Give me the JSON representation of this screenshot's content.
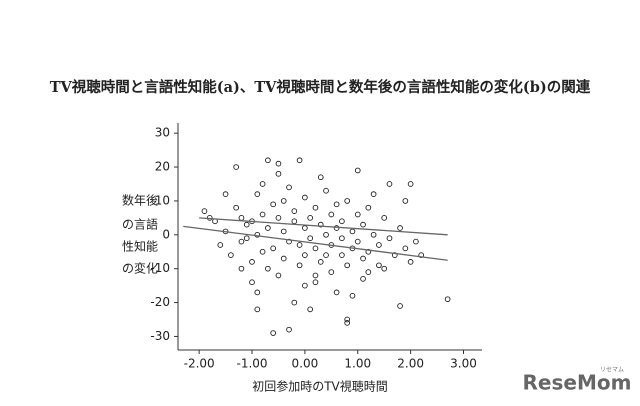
{
  "chart_data": {
    "type": "scatter",
    "title": "TV視聴時間と言語性知能(a)、TV視聴時間と数年後の言語性知能の変化(b)の関連",
    "y_label": [
      "数年後",
      "の言語",
      "性知能",
      "の変化"
    ],
    "x_label": "初回参加時のTV視聴時間",
    "watermark": "ReseMom",
    "watermark_sub": "リセマム",
    "xlim": [
      -2.4,
      3.35
    ],
    "ylim": [
      -34,
      33
    ],
    "xticks": [
      {
        "value": -2,
        "label": "-2.00"
      },
      {
        "value": -1,
        "label": "-1.00"
      },
      {
        "value": 0,
        "label": "0.00"
      },
      {
        "value": 1,
        "label": "1.00"
      },
      {
        "value": 2,
        "label": "2.00"
      },
      {
        "value": 3,
        "label": "3.00"
      }
    ],
    "yticks": [
      30,
      20,
      10,
      0,
      -10,
      -20,
      -30
    ],
    "color": "#222222",
    "line_color": "#666666",
    "x": [
      -1.9,
      -1.8,
      -1.7,
      -1.6,
      -1.5,
      -1.4,
      -1.3,
      -1.3,
      -1.2,
      -1.2,
      -1.1,
      -1.1,
      -1.0,
      -1.0,
      -1.0,
      -0.9,
      -0.9,
      -0.9,
      -0.8,
      -0.8,
      -0.8,
      -0.7,
      -0.7,
      -0.7,
      -0.6,
      -0.6,
      -0.6,
      -0.5,
      -0.5,
      -0.5,
      -0.4,
      -0.4,
      -0.4,
      -0.3,
      -0.3,
      -0.3,
      -0.2,
      -0.2,
      -0.2,
      -0.1,
      -0.1,
      -0.1,
      0,
      0,
      0,
      0,
      0.1,
      0.1,
      0.1,
      0.2,
      0.2,
      0.2,
      0.3,
      0.3,
      0.3,
      0.4,
      0.4,
      0.4,
      0.5,
      0.5,
      0.5,
      0.6,
      0.6,
      0.6,
      0.7,
      0.7,
      0.7,
      0.8,
      0.8,
      0.8,
      0.9,
      0.9,
      0.9,
      1.0,
      1.0,
      1.0,
      1.1,
      1.1,
      1.1,
      1.2,
      1.2,
      1.3,
      1.3,
      1.4,
      1.4,
      1.5,
      1.5,
      1.6,
      1.6,
      1.7,
      1.8,
      1.8,
      1.9,
      1.9,
      2.0,
      2.0,
      2.1,
      2.2,
      2.7,
      -1.5,
      -0.9,
      0.8,
      1.2,
      -0.5,
      0.2,
      -1.2
    ],
    "values": [
      7,
      5,
      4,
      -3,
      1,
      -6,
      20,
      8,
      5,
      -2,
      -1,
      3,
      -8,
      4,
      -14,
      -17,
      12,
      0,
      -5,
      6,
      15,
      2,
      -10,
      22,
      9,
      -4,
      -29,
      5,
      -12,
      18,
      1,
      -7,
      10,
      -2,
      -28,
      14,
      4,
      -20,
      7,
      -3,
      -9,
      22,
      2,
      -6,
      -15,
      11,
      5,
      -1,
      -22,
      8,
      -4,
      -12,
      3,
      17,
      -8,
      0,
      -6,
      13,
      6,
      -3,
      -11,
      2,
      -17,
      9,
      -1,
      -6,
      4,
      -25,
      10,
      -9,
      1,
      -4,
      -18,
      19,
      -2,
      6,
      -7,
      3,
      -13,
      8,
      -5,
      0,
      12,
      -9,
      -3,
      5,
      -10,
      15,
      -1,
      -6,
      -21,
      2,
      10,
      -4,
      -8,
      15,
      -2,
      -6,
      -19,
      12,
      -22,
      -26,
      -11,
      21,
      -14,
      -10
    ],
    "lines": [
      {
        "x": [
          -2.3,
          2.7
        ],
        "y": [
          2.5,
          -7.5
        ]
      },
      {
        "x": [
          -2.0,
          2.7
        ],
        "y": [
          5,
          0
        ]
      }
    ]
  }
}
